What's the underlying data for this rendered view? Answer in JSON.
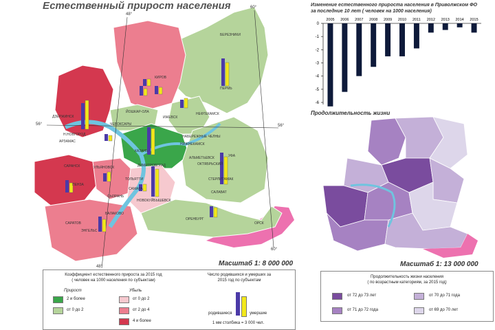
{
  "main_map": {
    "title": "Естественный прирост населения",
    "scale": "Масштаб 1: 8 000 000",
    "lat_labels": [
      "48°",
      "60°",
      "56°",
      "56°",
      "48°",
      "60°"
    ],
    "cities": [
      "БЕРЕЗНИКИ",
      "КИРОВ",
      "ПЕРМЬ",
      "НЕФТЕКАМСК",
      "ИЖЕВСК",
      "ЙОШКАР-ОЛА",
      "ЧЕБОКСАРЫ",
      "ДЗЕРЖИНСК",
      "Н.НОВГОРОД",
      "АРЗАМАС",
      "НАБЕРЕЖНЫЕ ЧЕЛНЫ",
      "НИЖНЕКАМСК",
      "КАЗАНЬ",
      "АЛЬМЕТЬЕВСК",
      "УФА",
      "ОКТЯБРЬСКИЙ",
      "СТЕРЛИТАМАК",
      "САЛАВАТ",
      "САРАНСК",
      "ПЕНЗА",
      "УЛЬЯНОВСК",
      "ДИМИТРОВГРАД",
      "ТОЛЬЯТТИ",
      "САМАРА",
      "СЫЗРАНЬ",
      "НОВОКУЙБЫШЕВСК",
      "БАЛАКОВО",
      "САРАТОВ",
      "ЭНГЕЛЬС",
      "ОРЕНБУРГ",
      "ОРСК"
    ],
    "colors": {
      "dark_green": "#3aa64a",
      "light_green": "#b5d49b",
      "light_pink": "#f6c9cf",
      "pink": "#ec7e8f",
      "red": "#d4384f",
      "water": "#6fc4df",
      "border": "#e84e9b",
      "born": "#4b3aa8",
      "died": "#f2e81a"
    }
  },
  "legend": {
    "title_line1": "Коэффициент естественного прироста за 2015 год",
    "title_line2": "( человек на 1000 населения по субъектам)",
    "growth_label": "Прирост",
    "decline_label": "Убыль",
    "growth_items": [
      "2 и более",
      "от 0 до 2"
    ],
    "decline_items": [
      "от 0 до 2",
      "от 2 до 4",
      "4 и более"
    ],
    "bars_title_line1": "Число родившихся и умерших за",
    "bars_title_line2": "2015 год по субъектам",
    "born_label": "родившиеся",
    "died_label": "умершие",
    "scale_note": "1 мм столбика = 3 000 чел."
  },
  "top_chart": {
    "title_line1": "Изменение естественного прироста населения в Приволжском ФО",
    "title_line2": "за последние 10 лет ( человек на 1000 населения)"
  },
  "chart_data": {
    "type": "bar",
    "title": "Изменение естественного прироста населения в Приволжском ФО за последние 10 лет ( человек на 1000 населения)",
    "categories": [
      "2005",
      "2006",
      "2007",
      "2008",
      "2009",
      "2010",
      "2011",
      "2012",
      "2013",
      "2014",
      "2015"
    ],
    "values": [
      -6.3,
      -5.2,
      -4.0,
      -3.3,
      -2.5,
      -2.5,
      -1.9,
      -0.7,
      -0.5,
      -0.3,
      -0.7
    ],
    "ylim": [
      -6,
      0
    ],
    "yticks": [
      "0",
      "-1",
      "-2",
      "-3",
      "-4",
      "-5",
      "-6"
    ],
    "bar_color": "#0e1a3a",
    "grid": false
  },
  "life_map": {
    "title": "Продолжительность жизни",
    "scale": "Масштаб 1: 13 000 000",
    "legend_title_line1": "Продолжительность жизни населения",
    "legend_title_line2": "( по возрастным категориям, за 2015 год)",
    "legend_items": [
      "от 72 до 73 лет",
      "от 71 до 72 года",
      "от 70 до 71 года",
      "от 69 до 70 лет"
    ],
    "colors": [
      "#7a4c9e",
      "#a682c2",
      "#c4b0d8",
      "#ddd6ea"
    ]
  }
}
